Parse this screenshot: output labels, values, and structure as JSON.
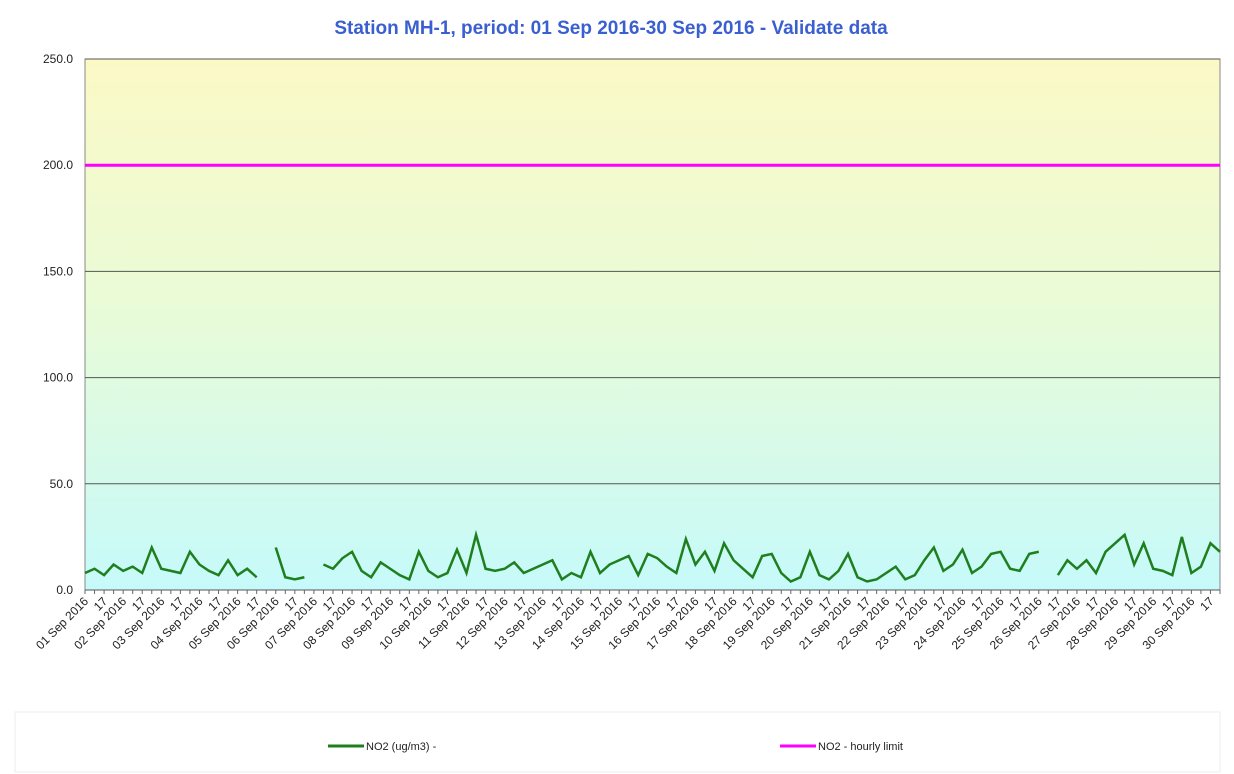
{
  "chart_data": {
    "type": "line",
    "title": "Station MH-1, period: 01 Sep 2016-30 Sep 2016 - Validate data",
    "categories": [
      "01 Sep 2016",
      null,
      "17",
      null,
      "02 Sep 2016",
      null,
      "17",
      null,
      "03 Sep 2016",
      null,
      "17",
      null,
      "04 Sep 2016",
      null,
      "17",
      null,
      "05 Sep 2016",
      null,
      "17",
      null,
      "06 Sep 2016",
      null,
      "17",
      null,
      "07 Sep 2016",
      null,
      "17",
      null,
      "08 Sep 2016",
      null,
      "17",
      null,
      "09 Sep 2016",
      null,
      "17",
      null,
      "10 Sep 2016",
      null,
      "17",
      null,
      "11 Sep 2016",
      null,
      "17",
      null,
      "12 Sep 2016",
      null,
      "17",
      null,
      "13 Sep 2016",
      null,
      "17",
      null,
      "14 Sep 2016",
      null,
      "17",
      null,
      "15 Sep 2016",
      null,
      "17",
      null,
      "16 Sep 2016",
      null,
      "17",
      null,
      "17 Sep 2016",
      null,
      "17",
      null,
      "18 Sep 2016",
      null,
      "17",
      null,
      "19 Sep 2016",
      null,
      "17",
      null,
      "20 Sep 2016",
      null,
      "17",
      null,
      "21 Sep 2016",
      null,
      "17",
      null,
      "22 Sep 2016",
      null,
      "17",
      null,
      "23 Sep 2016",
      null,
      "17",
      null,
      "24 Sep 2016",
      null,
      "17",
      null,
      "25 Sep 2016",
      null,
      "17",
      null,
      "26 Sep 2016",
      null,
      "17",
      null,
      "27 Sep 2016",
      null,
      "17",
      null,
      "28 Sep 2016",
      null,
      "17",
      null,
      "29 Sep 2016",
      null,
      "17",
      null,
      "30 Sep 2016",
      null,
      "17",
      null
    ],
    "series": [
      {
        "name": "NO2 (ug/m3) -",
        "color": "#1f7f1f",
        "values": [
          8,
          10,
          7,
          12,
          9,
          11,
          8,
          20,
          10,
          9,
          8,
          18,
          12,
          9,
          7,
          14,
          7,
          10,
          6,
          null,
          20,
          6,
          5,
          6,
          null,
          12,
          10,
          15,
          18,
          9,
          6,
          13,
          10,
          7,
          5,
          18,
          9,
          6,
          8,
          19,
          8,
          26,
          10,
          9,
          10,
          13,
          8,
          10,
          12,
          14,
          5,
          8,
          6,
          18,
          8,
          12,
          14,
          16,
          7,
          17,
          15,
          11,
          8,
          24,
          12,
          18,
          9,
          22,
          14,
          10,
          6,
          16,
          17,
          8,
          4,
          6,
          18,
          7,
          5,
          9,
          17,
          6,
          4,
          5,
          8,
          11,
          5,
          7,
          14,
          20,
          9,
          12,
          19,
          8,
          11,
          17,
          18,
          10,
          9,
          17,
          18,
          null,
          7,
          14,
          10,
          14,
          8,
          18,
          22,
          26,
          12,
          22,
          10,
          9,
          7,
          25,
          8,
          11,
          22,
          18
        ]
      },
      {
        "name": "NO2 - hourly limit",
        "color": "#ff00ff",
        "values": [
          200,
          200,
          200,
          200,
          200,
          200,
          200,
          200,
          200,
          200,
          200,
          200,
          200,
          200,
          200,
          200,
          200,
          200,
          200,
          200,
          200,
          200,
          200,
          200,
          200,
          200,
          200,
          200,
          200,
          200,
          200,
          200,
          200,
          200,
          200,
          200,
          200,
          200,
          200,
          200,
          200,
          200,
          200,
          200,
          200,
          200,
          200,
          200,
          200,
          200,
          200,
          200,
          200,
          200,
          200,
          200,
          200,
          200,
          200,
          200,
          200,
          200,
          200,
          200,
          200,
          200,
          200,
          200,
          200,
          200,
          200,
          200,
          200,
          200,
          200,
          200,
          200,
          200,
          200,
          200,
          200,
          200,
          200,
          200,
          200,
          200,
          200,
          200,
          200,
          200,
          200,
          200,
          200,
          200,
          200,
          200,
          200,
          200,
          200,
          200,
          200,
          200,
          200,
          200,
          200,
          200,
          200,
          200,
          200,
          200,
          200,
          200,
          200,
          200,
          200,
          200,
          200,
          200,
          200,
          200
        ]
      }
    ],
    "ylim": [
      0,
      250
    ],
    "yticks": [
      {
        "value": 0,
        "label": "0.0"
      },
      {
        "value": 50,
        "label": "50.0"
      },
      {
        "value": 100,
        "label": "100.0"
      },
      {
        "value": 150,
        "label": "150.0"
      },
      {
        "value": 200,
        "label": "200.0"
      },
      {
        "value": 250,
        "label": "250.0"
      }
    ],
    "grid": true,
    "legend": "bottom"
  }
}
